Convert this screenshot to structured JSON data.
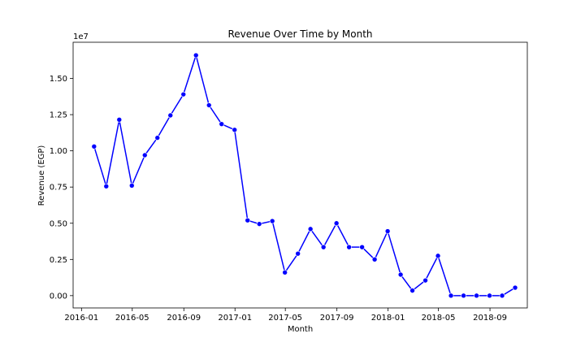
{
  "chart_data": {
    "type": "line",
    "title": "Revenue Over Time by Month",
    "xlabel": "Month",
    "ylabel": "Revenue (EGP)",
    "y_multiplier_label": "1e7",
    "x_tick_labels": [
      "2016-01",
      "2016-05",
      "2016-09",
      "2017-01",
      "2017-05",
      "2017-09",
      "2018-01",
      "2018-05",
      "2018-09"
    ],
    "x_tick_dates": [
      "2016-01-01",
      "2016-05-01",
      "2016-09-01",
      "2017-01-01",
      "2017-05-01",
      "2017-09-01",
      "2018-01-01",
      "2018-05-01",
      "2018-09-01"
    ],
    "y_tick_labels": [
      "0.00",
      "0.25",
      "0.50",
      "0.75",
      "1.00",
      "1.25",
      "1.50"
    ],
    "y_tick_values": [
      0,
      2500000,
      5000000,
      7500000,
      10000000,
      12500000,
      15000000
    ],
    "xlim": [
      "2015-12-12",
      "2018-11-29"
    ],
    "ylim": [
      -850000,
      17500000
    ],
    "color": "#0000ff",
    "marker": "circle",
    "grid": false,
    "series": [
      {
        "x": [
          "2016-01-31",
          "2016-02-29",
          "2016-03-31",
          "2016-04-30",
          "2016-05-31",
          "2016-06-30",
          "2016-07-31",
          "2016-08-31",
          "2016-09-30",
          "2016-10-31",
          "2016-11-30",
          "2016-12-31",
          "2017-01-31",
          "2017-02-28",
          "2017-03-31",
          "2017-04-30",
          "2017-05-31",
          "2017-06-30",
          "2017-07-31",
          "2017-08-31",
          "2017-09-30",
          "2017-10-31",
          "2017-11-30",
          "2017-12-31",
          "2018-01-31",
          "2018-02-28",
          "2018-03-31",
          "2018-04-30",
          "2018-05-31",
          "2018-06-30",
          "2018-07-31",
          "2018-08-31",
          "2018-09-30",
          "2018-10-31"
        ],
        "y": [
          10300000,
          7550000,
          12150000,
          7600000,
          9700000,
          10900000,
          12450000,
          13900000,
          16600000,
          13150000,
          11850000,
          11450000,
          5200000,
          4950000,
          5150000,
          1600000,
          2900000,
          4600000,
          3350000,
          5000000,
          3350000,
          3350000,
          2500000,
          4450000,
          1450000,
          350000,
          1050000,
          2750000,
          0,
          0,
          0,
          0,
          0,
          550000
        ]
      }
    ]
  }
}
